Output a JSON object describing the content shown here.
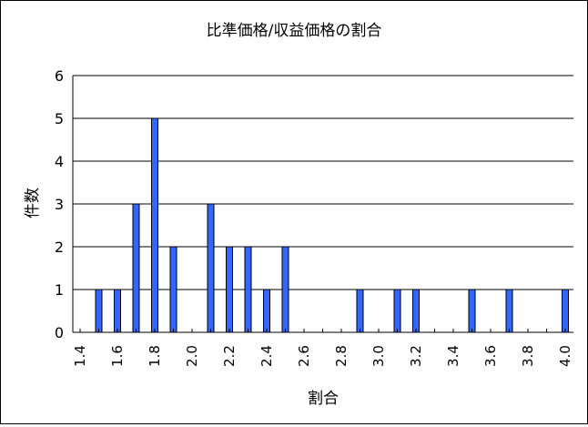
{
  "chart_data": {
    "type": "bar",
    "title": "比準価格/収益価格の割合",
    "xlabel": "割合",
    "ylabel": "件数",
    "x_range": [
      1.4,
      4.0
    ],
    "x_tick_labels": [
      "1.4",
      "1.6",
      "1.8",
      "2.0",
      "2.2",
      "2.4",
      "2.6",
      "2.8",
      "3.0",
      "3.2",
      "3.4",
      "3.6",
      "3.8",
      "4.0"
    ],
    "y_range": [
      0,
      6
    ],
    "y_tick_labels": [
      "0",
      "1",
      "2",
      "3",
      "4",
      "5",
      "6"
    ],
    "grid": true,
    "legend": "none",
    "bar_color": "#3366ff",
    "x": [
      1.5,
      1.6,
      1.7,
      1.8,
      1.9,
      2.1,
      2.2,
      2.3,
      2.4,
      2.5,
      2.9,
      3.1,
      3.2,
      3.5,
      3.7,
      4.0
    ],
    "values": [
      1,
      1,
      3,
      5,
      2,
      3,
      2,
      2,
      1,
      2,
      1,
      1,
      1,
      1,
      1,
      1
    ]
  }
}
